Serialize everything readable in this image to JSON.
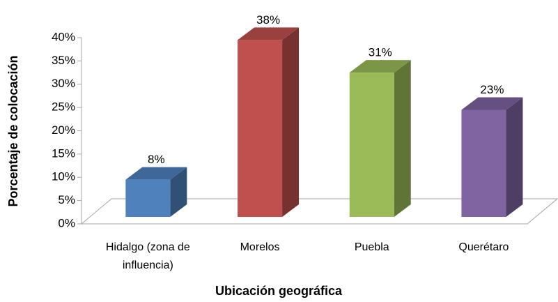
{
  "chart_data": {
    "type": "bar3d",
    "xlabel": "Ubicación geográfica",
    "ylabel": "Porcentaje de colocación",
    "categories": [
      "Hidalgo (zona de influencia)",
      "Morelos",
      "Puebla",
      "Querétaro"
    ],
    "values": [
      8,
      38,
      31,
      23
    ],
    "value_labels": [
      "8%",
      "38%",
      "31%",
      "23%"
    ],
    "colors": [
      "#4f81bd",
      "#c0504d",
      "#9bbb59",
      "#8064a2"
    ],
    "ylim": [
      0,
      40
    ],
    "yticks": [
      {
        "value": 0,
        "label": "0%"
      },
      {
        "value": 5,
        "label": "5%"
      },
      {
        "value": 10,
        "label": "10%"
      },
      {
        "value": 15,
        "label": "15%"
      },
      {
        "value": 20,
        "label": "20%"
      },
      {
        "value": 25,
        "label": "25%"
      },
      {
        "value": 30,
        "label": "30%"
      },
      {
        "value": 35,
        "label": "35%"
      },
      {
        "value": 40,
        "label": "40%"
      }
    ]
  }
}
